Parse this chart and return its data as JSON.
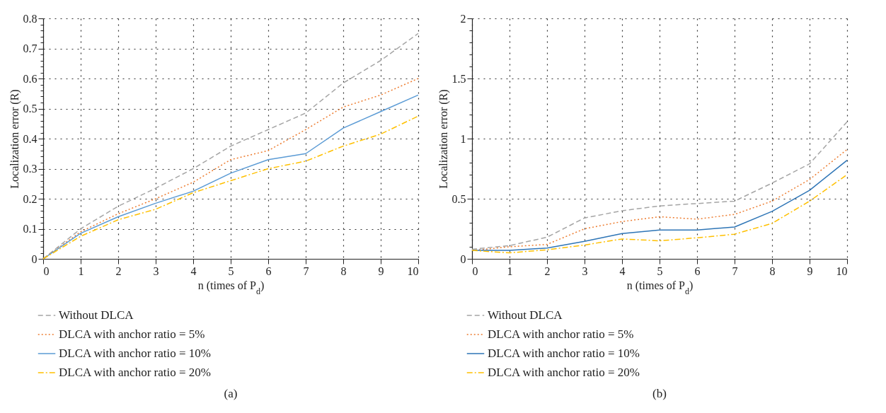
{
  "chart_data": [
    {
      "type": "line",
      "title": "(a)",
      "xlabel": "n (times of P$_{d}$)",
      "ylabel": "Localization error (R)",
      "x": [
        0,
        1,
        2,
        3,
        4,
        5,
        6,
        7,
        8,
        9,
        10
      ],
      "series": [
        {
          "name": "Without DLCA",
          "color": "#a5a5a5",
          "line_style": "dashed",
          "values": [
            0,
            0.1,
            0.175,
            0.235,
            0.3,
            0.375,
            0.43,
            0.485,
            0.585,
            0.66,
            0.75
          ]
        },
        {
          "name": "DLCA with anchor ratio = 5%",
          "color": "#ed7d31",
          "line_style": "dotted",
          "values": [
            0,
            0.09,
            0.15,
            0.2,
            0.255,
            0.33,
            0.36,
            0.43,
            0.505,
            0.545,
            0.6
          ]
        },
        {
          "name": "DLCA with anchor ratio = 10%",
          "color": "#5b9bd5",
          "line_style": "solid",
          "values": [
            0,
            0.085,
            0.14,
            0.185,
            0.225,
            0.285,
            0.33,
            0.35,
            0.435,
            0.49,
            0.545
          ]
        },
        {
          "name": "DLCA with anchor ratio = 20%",
          "color": "#ffc000",
          "line_style": "dashdot",
          "values": [
            0,
            0.075,
            0.13,
            0.165,
            0.22,
            0.26,
            0.3,
            0.325,
            0.375,
            0.415,
            0.475
          ]
        }
      ],
      "xlim": [
        0,
        10
      ],
      "ylim": [
        0,
        0.8
      ],
      "xticks": [
        0,
        1,
        2,
        3,
        4,
        5,
        6,
        7,
        8,
        9,
        10
      ],
      "yticks": [
        0,
        {
          "value": 0.02,
          "label": null
        },
        {
          "value": 0.04,
          "label": null
        },
        {
          "value": 0.06,
          "label": null
        },
        {
          "value": 0.08,
          "label": null
        },
        0.1,
        {
          "value": 0.12,
          "label": null
        },
        {
          "value": 0.14,
          "label": null
        },
        {
          "value": 0.16,
          "label": null
        },
        {
          "value": 0.18,
          "label": null
        },
        0.2,
        {
          "value": 0.22,
          "label": null
        },
        {
          "value": 0.24,
          "label": null
        },
        {
          "value": 0.26,
          "label": null
        },
        {
          "value": 0.28,
          "label": null
        },
        0.3,
        {
          "value": 0.32,
          "label": null
        },
        {
          "value": 0.34,
          "label": null
        },
        {
          "value": 0.36,
          "label": null
        },
        {
          "value": 0.38,
          "label": null
        },
        0.4,
        {
          "value": 0.42,
          "label": null
        },
        {
          "value": 0.44,
          "label": null
        },
        {
          "value": 0.46,
          "label": null
        },
        {
          "value": 0.48,
          "label": null
        },
        0.5,
        {
          "value": 0.52,
          "label": null
        },
        {
          "value": 0.54,
          "label": null
        },
        {
          "value": 0.56,
          "label": null
        },
        {
          "value": 0.58,
          "label": null
        },
        0.6,
        {
          "value": 0.62,
          "label": null
        },
        {
          "value": 0.64,
          "label": null
        },
        {
          "value": 0.66,
          "label": null
        },
        {
          "value": 0.68,
          "label": null
        },
        0.7,
        {
          "value": 0.72,
          "label": null
        },
        {
          "value": 0.74,
          "label": null
        },
        {
          "value": 0.76,
          "label": null
        },
        {
          "value": 0.78,
          "label": null
        },
        0.8
      ],
      "grid": true,
      "legend": "bottom"
    },
    {
      "type": "line",
      "title": "(b)",
      "xlabel": "n (times of P$_{d}$)",
      "ylabel": "Localization error (R)",
      "x": [
        0,
        1,
        2,
        3,
        4,
        5,
        6,
        7,
        8,
        9,
        10
      ],
      "series": [
        {
          "name": "Without DLCA",
          "color": "#a5a5a5",
          "line_style": "dashed",
          "values": [
            0.08,
            0.11,
            0.18,
            0.34,
            0.4,
            0.44,
            0.46,
            0.48,
            0.63,
            0.79,
            1.14
          ]
        },
        {
          "name": "DLCA with anchor ratio = 5%",
          "color": "#ed7d31",
          "line_style": "dotted",
          "values": [
            0.07,
            0.1,
            0.12,
            0.25,
            0.31,
            0.35,
            0.33,
            0.37,
            0.48,
            0.66,
            0.91
          ]
        },
        {
          "name": "DLCA with anchor ratio = 10%",
          "color": "#2e75b6",
          "line_style": "solid",
          "values": [
            0.07,
            0.07,
            0.09,
            0.145,
            0.21,
            0.24,
            0.24,
            0.265,
            0.395,
            0.57,
            0.82
          ]
        },
        {
          "name": "DLCA with anchor ratio = 20%",
          "color": "#ffc000",
          "line_style": "dashdot",
          "values": [
            0.07,
            0.05,
            0.075,
            0.115,
            0.165,
            0.15,
            0.175,
            0.205,
            0.295,
            0.48,
            0.7
          ]
        }
      ],
      "xlim": [
        0,
        10
      ],
      "ylim": [
        0,
        2
      ],
      "xticks": [
        0,
        1,
        2,
        3,
        4,
        5,
        6,
        7,
        8,
        9,
        10
      ],
      "yticks": [
        0,
        {
          "value": 0.1,
          "label": null
        },
        {
          "value": 0.2,
          "label": null
        },
        {
          "value": 0.3,
          "label": null
        },
        {
          "value": 0.4,
          "label": null
        },
        0.5,
        {
          "value": 0.6,
          "label": null
        },
        {
          "value": 0.7,
          "label": null
        },
        {
          "value": 0.8,
          "label": null
        },
        {
          "value": 0.9,
          "label": null
        },
        1,
        {
          "value": 1.1,
          "label": null
        },
        {
          "value": 1.2,
          "label": null
        },
        {
          "value": 1.3,
          "label": null
        },
        {
          "value": 1.4,
          "label": null
        },
        1.5,
        {
          "value": 1.6,
          "label": null
        },
        {
          "value": 1.7,
          "label": null
        },
        {
          "value": 1.8,
          "label": null
        },
        {
          "value": 1.9,
          "label": null
        },
        2
      ],
      "grid": true,
      "legend": "bottom"
    }
  ]
}
